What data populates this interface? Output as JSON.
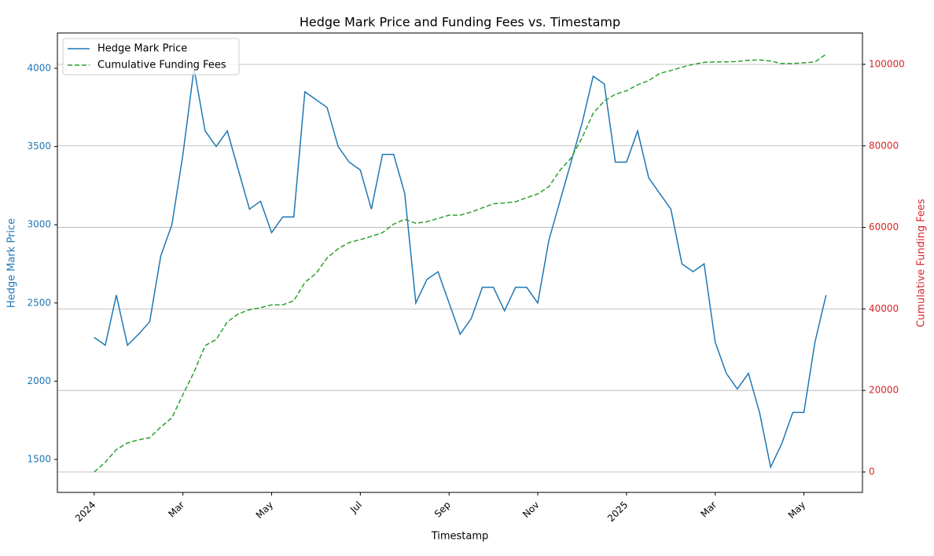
{
  "chart_data": {
    "type": "line",
    "title": "Hedge Mark Price and Funding Fees vs. Timestamp",
    "xlabel": "Timestamp",
    "ylabel": "Hedge Mark Price",
    "y2label": "Cumulative Funding Fees",
    "ylabel_color": "#1f77b4",
    "y2label_color": "#d62728",
    "x": [
      0,
      0.25,
      0.5,
      0.75,
      1,
      1.25,
      1.5,
      1.75,
      2,
      2.25,
      2.5,
      2.75,
      3,
      3.25,
      3.5,
      3.75,
      4,
      4.25,
      4.5,
      4.75,
      5,
      5.25,
      5.5,
      5.75,
      6,
      6.25,
      6.5,
      6.75,
      7,
      7.25,
      7.5,
      7.75,
      8,
      8.25,
      8.5,
      8.75,
      9,
      9.25,
      9.5,
      9.75,
      10,
      10.25,
      10.5,
      10.75,
      11,
      11.25,
      11.5,
      11.75,
      12,
      12.25,
      12.5,
      12.75,
      13,
      13.25,
      13.5,
      13.75,
      14,
      14.25,
      14.5,
      14.75,
      15,
      15.25,
      15.5,
      15.75,
      16,
      16.25,
      16.5
    ],
    "series": [
      {
        "name": "Hedge Mark Price",
        "color": "#1f77b4",
        "dash": "none",
        "axis": "y",
        "values": [
          2280,
          2230,
          2550,
          2230,
          2300,
          2380,
          2800,
          3000,
          3450,
          4000,
          3600,
          3500,
          3600,
          3350,
          3100,
          3150,
          2950,
          3050,
          3050,
          3850,
          3800,
          3750,
          3500,
          3400,
          3350,
          3100,
          3450,
          3450,
          3200,
          2500,
          2650,
          2700,
          2500,
          2300,
          2400,
          2600,
          2600,
          2450,
          2600,
          2600,
          2500,
          2900,
          3150,
          3400,
          3650,
          3950,
          3900,
          3400,
          3400,
          3600,
          3300,
          3200,
          3100,
          2750,
          2700,
          2750,
          2250,
          2050,
          1950,
          2050,
          1800,
          1450,
          1600,
          1800,
          1800,
          2250,
          2550
        ]
      },
      {
        "name": "Cumulative Funding Fees",
        "color": "#2ca02c",
        "dash": "6,3",
        "axis": "y2",
        "values": [
          0,
          2400,
          5500,
          7100,
          7900,
          8400,
          11000,
          13300,
          19000,
          24500,
          31000,
          32500,
          36800,
          38800,
          39800,
          40300,
          41000,
          41000,
          42000,
          46500,
          48700,
          52500,
          54800,
          56300,
          57000,
          57800,
          58700,
          60800,
          62000,
          61000,
          61400,
          62200,
          63000,
          63000,
          63800,
          64800,
          65800,
          66000,
          66300,
          67300,
          68200,
          70000,
          74000,
          77000,
          82000,
          88000,
          91000,
          92700,
          93500,
          95000,
          96000,
          97800,
          98500,
          99300,
          100000,
          100500,
          100600,
          100600,
          100700,
          101000,
          101100,
          100800,
          100200,
          100200,
          100400,
          100600,
          102500
        ]
      }
    ],
    "xlim": [
      -0.83,
      17.32
    ],
    "xticks": [
      {
        "value": 0,
        "label": "2024"
      },
      {
        "value": 2,
        "label": "Mar"
      },
      {
        "value": 4,
        "label": "May"
      },
      {
        "value": 6,
        "label": "Jul"
      },
      {
        "value": 8,
        "label": "Sep"
      },
      {
        "value": 10,
        "label": "Nov"
      },
      {
        "value": 12,
        "label": "2025"
      },
      {
        "value": 14,
        "label": "Mar"
      },
      {
        "value": 16,
        "label": "May"
      }
    ],
    "ylim": [
      1289,
      4226
    ],
    "yticks": [
      1500,
      2000,
      2500,
      3000,
      3500,
      4000
    ],
    "y2lim": [
      -5010,
      107700
    ],
    "y2ticks": [
      0,
      20000,
      40000,
      60000,
      80000,
      100000
    ],
    "grid": "y2",
    "legend": "upper left"
  }
}
